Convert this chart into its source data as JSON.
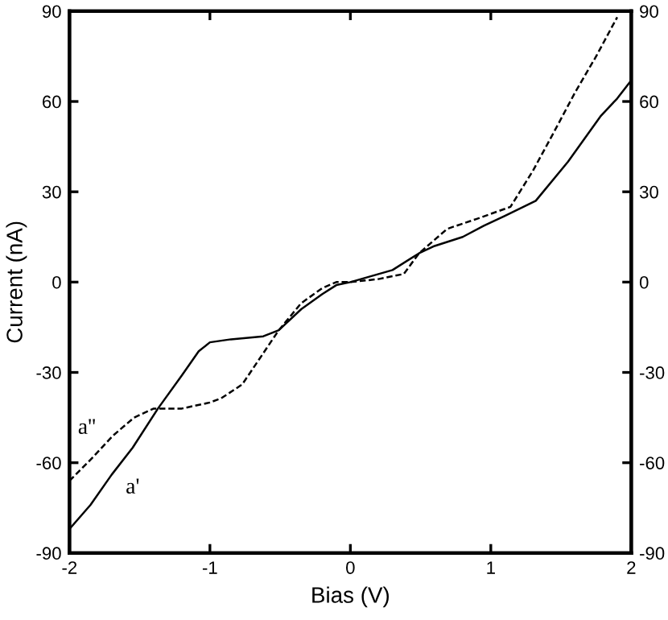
{
  "chart_data": {
    "type": "line",
    "xlabel": "Bias (V)",
    "ylabel": "Current (nA)",
    "xlim": [
      -2,
      2
    ],
    "xticks": [
      -2,
      -1,
      0,
      1,
      2
    ],
    "ylim": [
      -90,
      90
    ],
    "yticks": [
      -90,
      -60,
      -30,
      0,
      30,
      60,
      90
    ],
    "y2lim": [
      -90,
      90
    ],
    "y2ticks": [
      -90,
      -60,
      -30,
      0,
      30,
      60,
      90
    ],
    "series": [
      {
        "color": "#000000",
        "line_style": "solid",
        "x": [
          -2,
          -1.85,
          -1.7,
          -1.55,
          -1.37,
          -1.2,
          -1.08,
          -1.0,
          -0.85,
          -0.62,
          -0.51,
          -0.35,
          -0.2,
          -0.1,
          0,
          0.15,
          0.3,
          0.49,
          0.6,
          0.8,
          0.95,
          1.1,
          1.32,
          1.55,
          1.78,
          1.9,
          2
        ],
        "values": [
          -82,
          -74,
          -64,
          -55,
          -42,
          -31,
          -23,
          -20,
          -19,
          -18,
          -16,
          -9,
          -4,
          -1,
          0,
          2,
          4,
          9.6,
          12,
          15,
          18.7,
          22,
          27,
          40,
          55,
          61,
          67
        ]
      },
      {
        "color": "#000000",
        "line_style": "dashed",
        "x": [
          -2,
          -1.85,
          -1.69,
          -1.54,
          -1.4,
          -1.2,
          -1.0,
          -0.92,
          -0.77,
          -0.51,
          -0.35,
          -0.2,
          -0.1,
          0,
          0.2,
          0.38,
          0.49,
          0.69,
          0.9,
          1.14,
          1.3,
          1.44,
          1.6,
          1.75,
          1.9
        ],
        "values": [
          -66,
          -59,
          -51,
          -45,
          -42,
          -42,
          -40,
          -38.6,
          -34,
          -16,
          -7,
          -2,
          0,
          0,
          1,
          2.7,
          9.6,
          17.7,
          21,
          25,
          37,
          49,
          63,
          75,
          88
        ]
      }
    ],
    "annotations": [
      "a''",
      "a'"
    ]
  }
}
